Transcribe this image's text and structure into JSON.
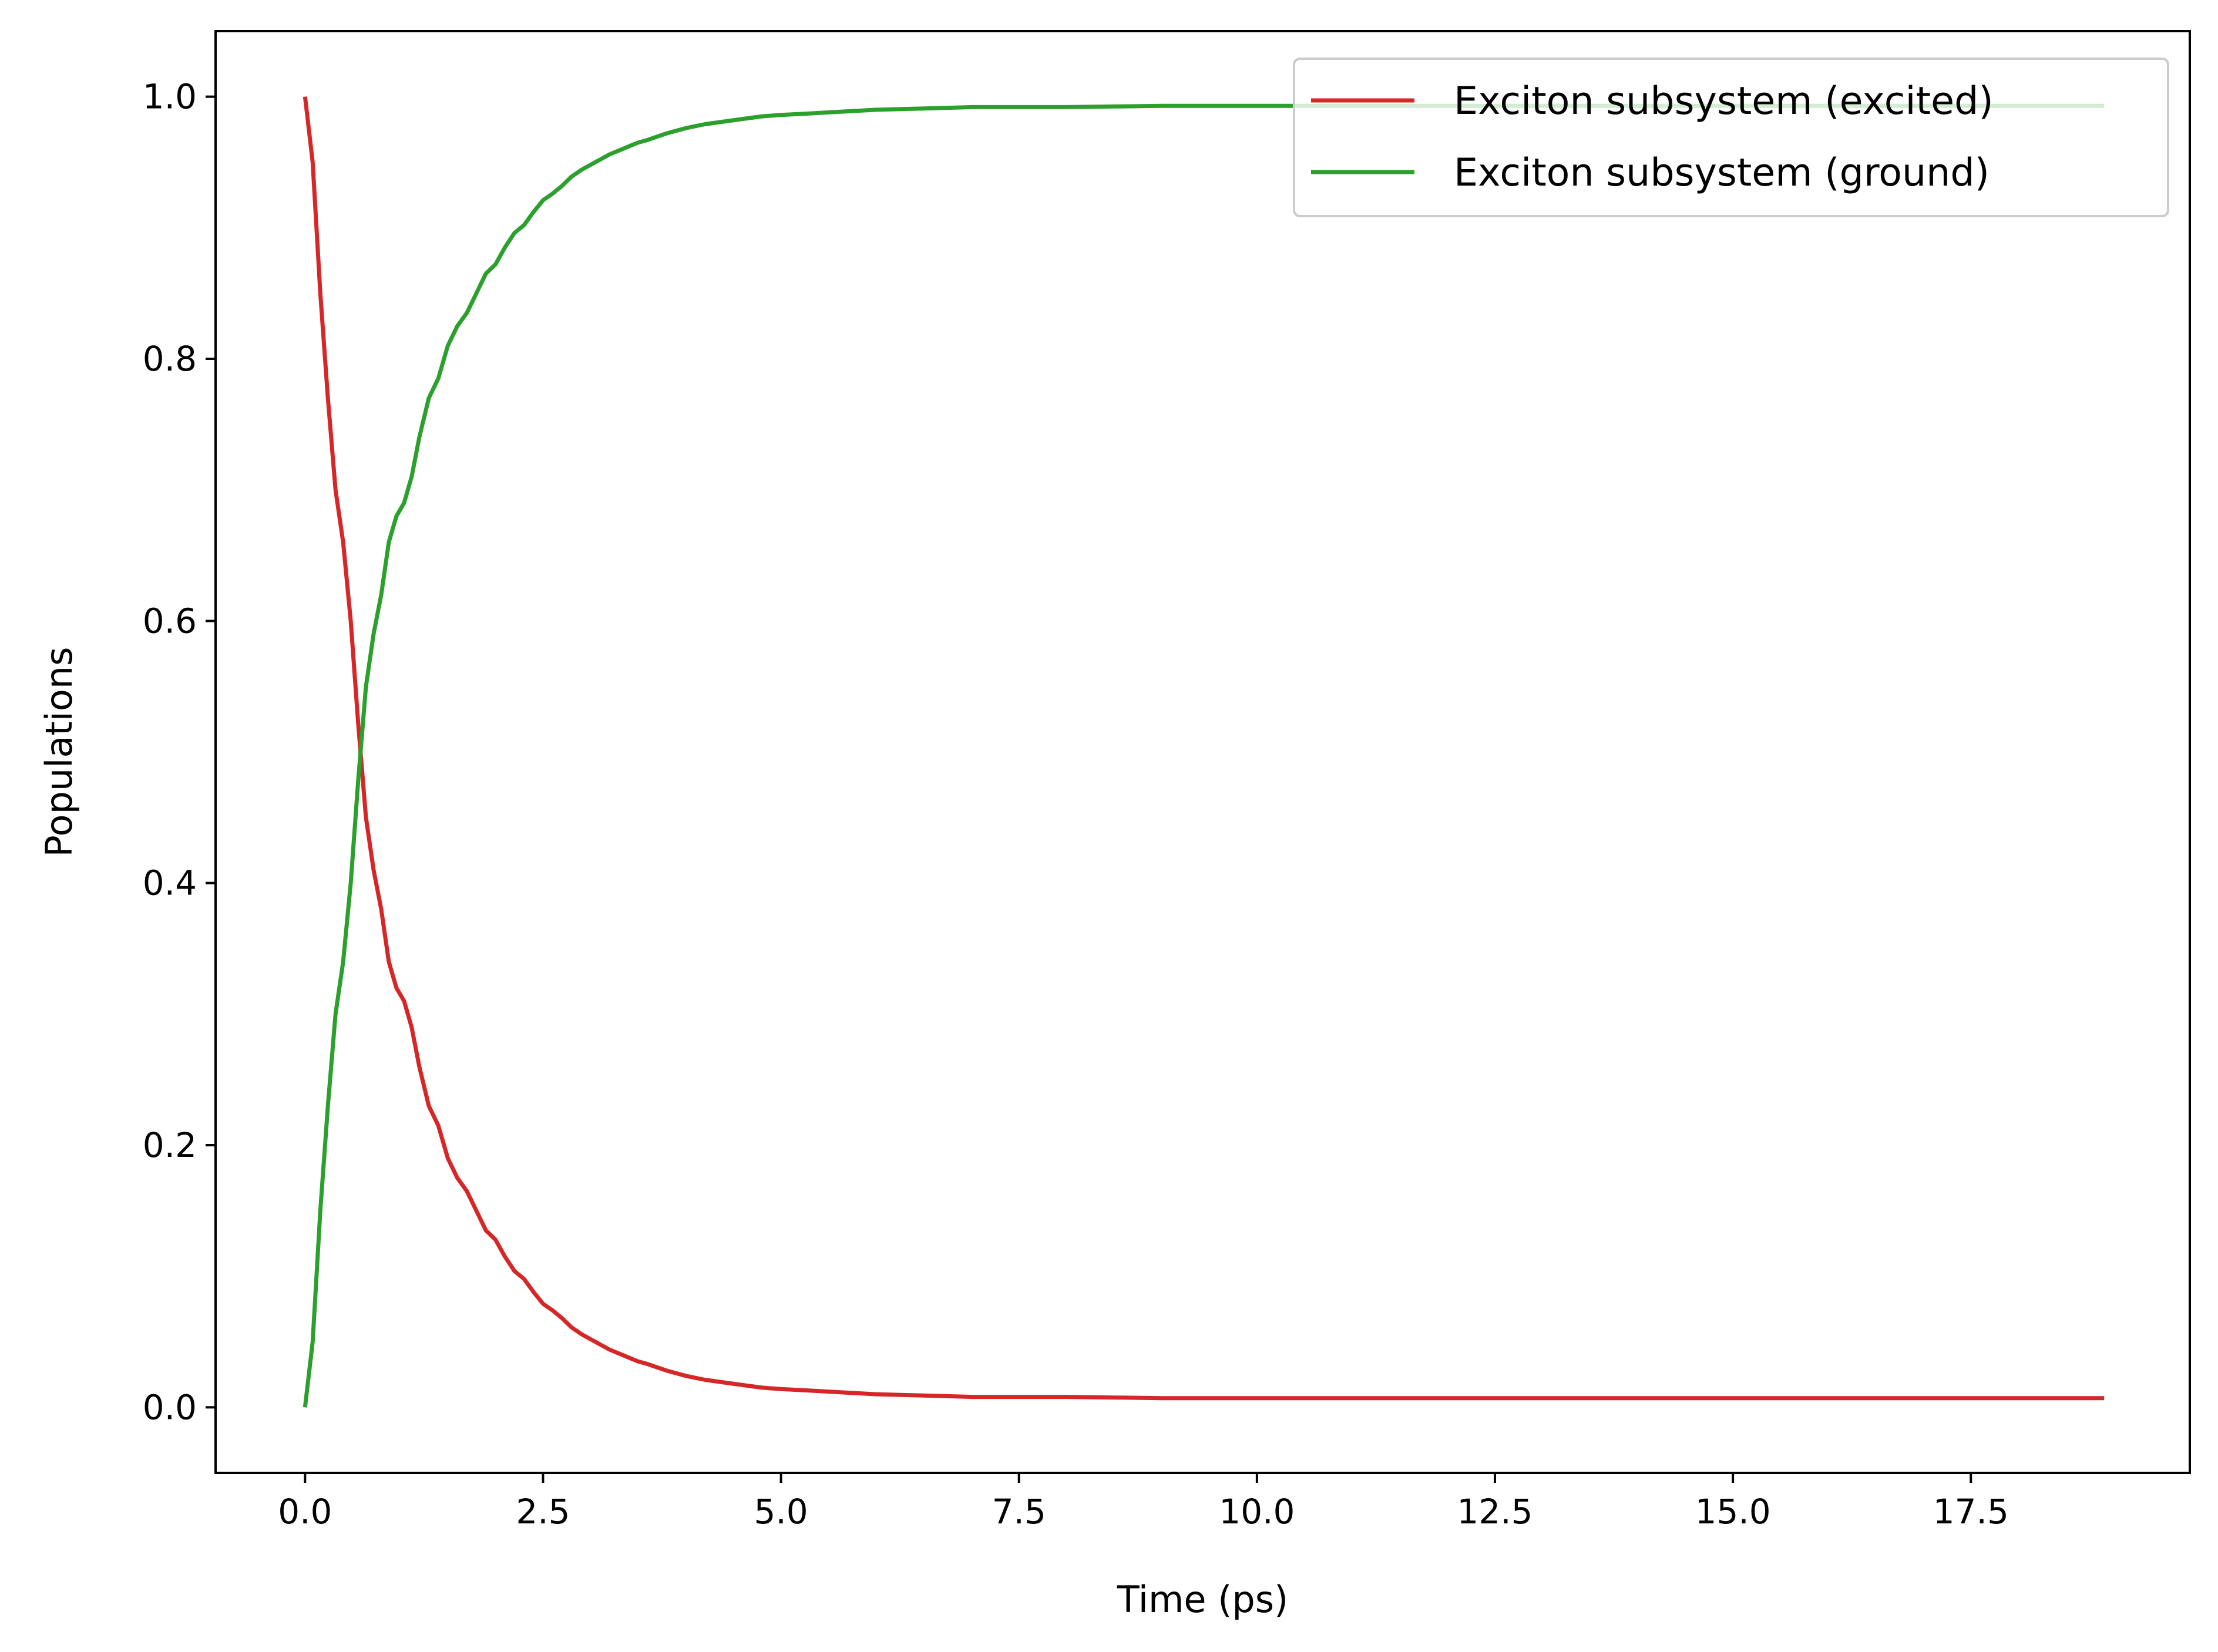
{
  "chart_data": {
    "type": "line",
    "title": "",
    "xlabel": "Time (ps)",
    "ylabel": "Populations",
    "xlim": [
      -0.94,
      19.8
    ],
    "ylim": [
      -0.05,
      1.05
    ],
    "xticks": [
      0.0,
      2.5,
      5.0,
      7.5,
      10.0,
      12.5,
      15.0,
      17.5
    ],
    "xtick_labels": [
      "0.0",
      "2.5",
      "5.0",
      "7.5",
      "10.0",
      "12.5",
      "15.0",
      "17.5"
    ],
    "yticks": [
      0.0,
      0.2,
      0.4,
      0.6,
      0.8,
      1.0
    ],
    "ytick_labels": [
      "0.0",
      "0.2",
      "0.4",
      "0.6",
      "0.8",
      "1.0"
    ],
    "grid": false,
    "legend_position": "top-right",
    "series": [
      {
        "name": "Exciton subsystem (excited)",
        "color": "#d62728",
        "x": [
          0.0,
          0.08,
          0.16,
          0.24,
          0.32,
          0.4,
          0.48,
          0.56,
          0.64,
          0.72,
          0.8,
          0.88,
          0.96,
          1.04,
          1.12,
          1.2,
          1.3,
          1.4,
          1.5,
          1.6,
          1.7,
          1.8,
          1.9,
          2.0,
          2.1,
          2.2,
          2.3,
          2.4,
          2.5,
          2.6,
          2.7,
          2.8,
          2.9,
          3.0,
          3.1,
          3.2,
          3.3,
          3.4,
          3.5,
          3.6,
          3.8,
          4.0,
          4.2,
          4.4,
          4.6,
          4.8,
          5.0,
          5.25,
          5.5,
          5.75,
          6.0,
          6.5,
          7.0,
          7.5,
          8.0,
          9.0,
          10.0,
          12.0,
          14.0,
          16.0,
          18.0,
          18.9
        ],
        "y": [
          1.0,
          0.95,
          0.85,
          0.77,
          0.7,
          0.66,
          0.6,
          0.52,
          0.45,
          0.41,
          0.38,
          0.34,
          0.32,
          0.31,
          0.29,
          0.26,
          0.23,
          0.215,
          0.19,
          0.175,
          0.165,
          0.15,
          0.135,
          0.128,
          0.115,
          0.104,
          0.098,
          0.088,
          0.079,
          0.074,
          0.068,
          0.061,
          0.056,
          0.052,
          0.048,
          0.044,
          0.041,
          0.038,
          0.035,
          0.033,
          0.028,
          0.024,
          0.021,
          0.019,
          0.017,
          0.015,
          0.014,
          0.013,
          0.012,
          0.011,
          0.01,
          0.009,
          0.008,
          0.008,
          0.008,
          0.007,
          0.007,
          0.007,
          0.007,
          0.007,
          0.007,
          0.007
        ]
      },
      {
        "name": "Exciton subsystem (ground)",
        "color": "#2ca02c",
        "x": [
          0.0,
          0.08,
          0.16,
          0.24,
          0.32,
          0.4,
          0.48,
          0.56,
          0.64,
          0.72,
          0.8,
          0.88,
          0.96,
          1.04,
          1.12,
          1.2,
          1.3,
          1.4,
          1.5,
          1.6,
          1.7,
          1.8,
          1.9,
          2.0,
          2.1,
          2.2,
          2.3,
          2.4,
          2.5,
          2.6,
          2.7,
          2.8,
          2.9,
          3.0,
          3.1,
          3.2,
          3.3,
          3.4,
          3.5,
          3.6,
          3.8,
          4.0,
          4.2,
          4.4,
          4.6,
          4.8,
          5.0,
          5.25,
          5.5,
          5.75,
          6.0,
          6.5,
          7.0,
          7.5,
          8.0,
          9.0,
          10.0,
          12.0,
          14.0,
          16.0,
          18.0,
          18.9
        ],
        "y": [
          0.0,
          0.05,
          0.15,
          0.23,
          0.3,
          0.34,
          0.4,
          0.48,
          0.55,
          0.59,
          0.62,
          0.66,
          0.68,
          0.69,
          0.71,
          0.74,
          0.77,
          0.785,
          0.81,
          0.825,
          0.835,
          0.85,
          0.865,
          0.872,
          0.885,
          0.896,
          0.902,
          0.912,
          0.921,
          0.926,
          0.932,
          0.939,
          0.944,
          0.948,
          0.952,
          0.956,
          0.959,
          0.962,
          0.965,
          0.967,
          0.972,
          0.976,
          0.979,
          0.981,
          0.983,
          0.985,
          0.986,
          0.987,
          0.988,
          0.989,
          0.99,
          0.991,
          0.992,
          0.992,
          0.992,
          0.993,
          0.993,
          0.993,
          0.993,
          0.993,
          0.993,
          0.993
        ]
      }
    ]
  }
}
